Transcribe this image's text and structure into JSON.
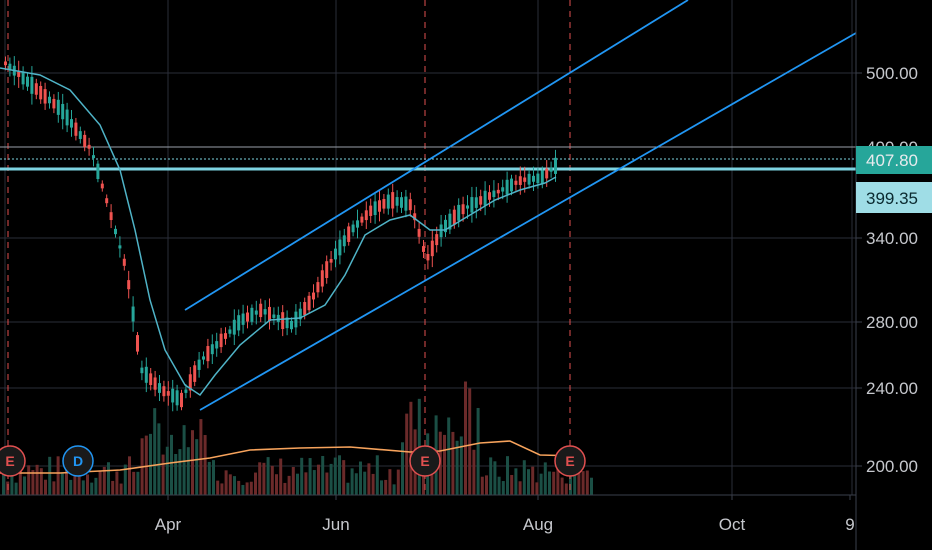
{
  "colors": {
    "background": "#000000",
    "grid": "#2a2e39",
    "up": "#26a69a",
    "down": "#ef5350",
    "ma": "#4fb3c7",
    "channel": "#2196f3",
    "hline": "#7dd3e0",
    "volume_ma": "#f7a35c",
    "event_earnings": "#e15050",
    "event_dividend": "#2196f3",
    "last_price_bg": "#26a69a",
    "level_bg": "#9fdde6"
  },
  "x_axis": {
    "ticks": [
      "Apr",
      "Jun",
      "Aug",
      "Oct",
      "9"
    ]
  },
  "y_axis": {
    "ticks": [
      "500.00",
      "340.00",
      "280.00",
      "240.00",
      "200.00"
    ],
    "partially_hidden_tick": "400.00"
  },
  "price_labels": {
    "last_price": "407.80",
    "level": "399.35"
  },
  "events": [
    {
      "type": "earnings",
      "label": "E"
    },
    {
      "type": "dividend",
      "label": "D"
    },
    {
      "type": "earnings",
      "label": "E"
    },
    {
      "type": "earnings",
      "label": "E"
    }
  ],
  "chart_data": {
    "type": "candlestick",
    "x_ticks": [
      "Apr",
      "Jun",
      "Aug",
      "Oct",
      "9"
    ],
    "y_ticks": [
      500,
      340,
      280,
      240,
      200
    ],
    "horizontal_levels": [
      399.35,
      407.8
    ],
    "last_price": 407.8,
    "moving_average": "1 line",
    "channel_lines": 3,
    "volume_bars": true
  }
}
